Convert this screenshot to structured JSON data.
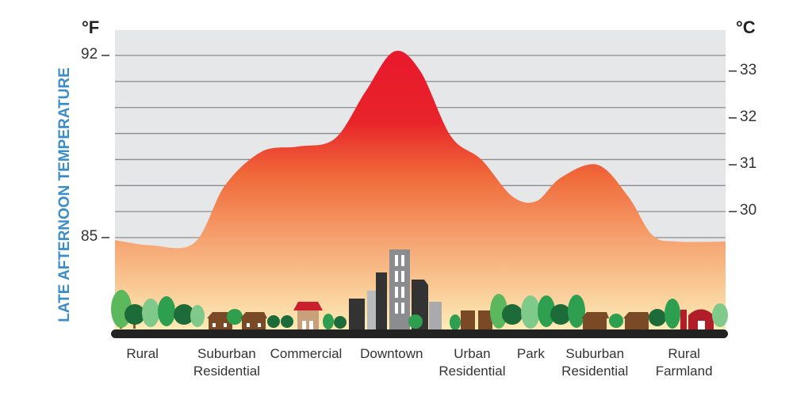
{
  "chart_data": {
    "type": "area",
    "title": "",
    "ylabel": "LATE AFTERNOON TEMPERATURE",
    "y_unit_left": "°F",
    "y_unit_right": "°C",
    "ylim_f": [
      84,
      92.9
    ],
    "left_ticks": [
      {
        "value": 92,
        "label": "92"
      },
      {
        "value": 85,
        "label": "85"
      }
    ],
    "right_ticks": [
      {
        "value": 33,
        "label": "33"
      },
      {
        "value": 32,
        "label": "32"
      },
      {
        "value": 31,
        "label": "31"
      },
      {
        "value": 30,
        "label": "30"
      }
    ],
    "gridlines_f": [
      85,
      86,
      87,
      88,
      89,
      90,
      91,
      92
    ],
    "profile": {
      "x": [
        0,
        6,
        13,
        18,
        24,
        30,
        36,
        41,
        45.7,
        50,
        55,
        60,
        65,
        69,
        73,
        79,
        84,
        88,
        92,
        100
      ],
      "y_f": [
        84.9,
        84.7,
        84.8,
        87.0,
        88.3,
        88.5,
        88.8,
        90.6,
        92.15,
        91.4,
        88.9,
        88.0,
        86.6,
        86.4,
        87.3,
        87.8,
        86.6,
        85.1,
        84.85,
        84.85
      ]
    },
    "categories": [
      {
        "lines": [
          "Rural"
        ],
        "x": 4.5
      },
      {
        "lines": [
          "Suburban",
          "Residential"
        ],
        "x": 18.3
      },
      {
        "lines": [
          "Commercial"
        ],
        "x": 31.3
      },
      {
        "lines": [
          "Downtown"
        ],
        "x": 45.3
      },
      {
        "lines": [
          "Urban",
          "Residential"
        ],
        "x": 58.5
      },
      {
        "lines": [
          "Park"
        ],
        "x": 68.1
      },
      {
        "lines": [
          "Suburban",
          "Residential"
        ],
        "x": 78.6
      },
      {
        "lines": [
          "Rural",
          "Farmland"
        ],
        "x": 93.2
      }
    ],
    "colors": {
      "hot": "#e8192c",
      "mid": "#f07a3c",
      "cool": "#fde9b4",
      "background": "#e6e7e9",
      "grid": "#8a8c8f",
      "axis_label": "#3a8dc9"
    }
  }
}
